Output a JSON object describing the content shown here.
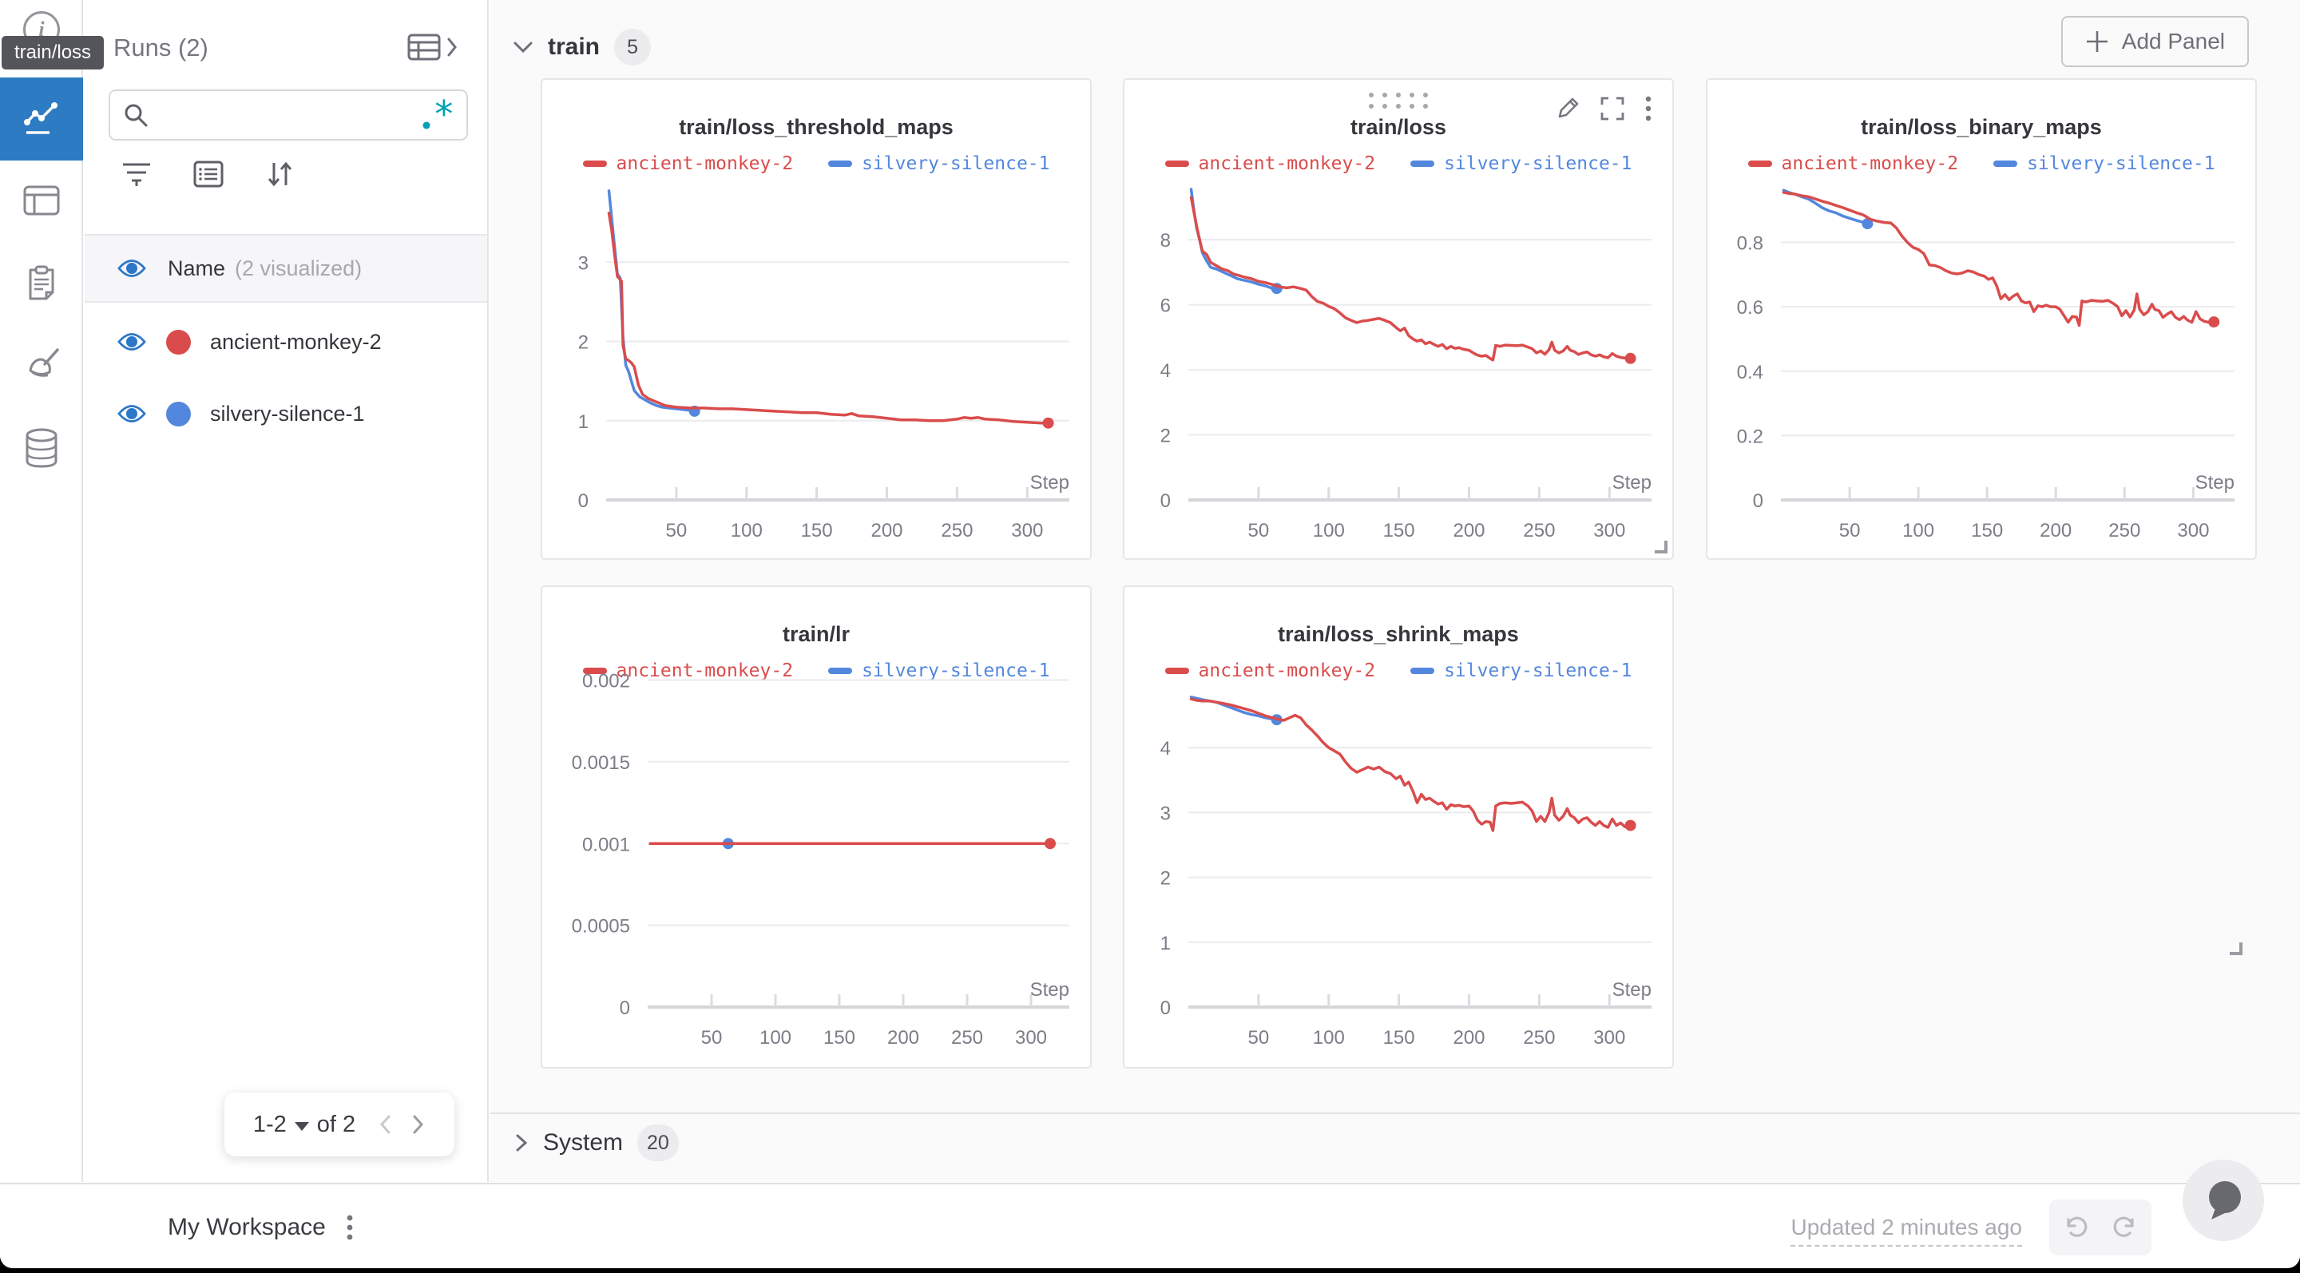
{
  "tooltip": {
    "label": "train/loss"
  },
  "rail": {
    "icons": [
      "info-icon",
      "line-chart-icon",
      "table-panel-icon",
      "clipboard-icon",
      "broom-icon",
      "database-icon"
    ]
  },
  "runs_panel": {
    "title": "Runs (2)",
    "search": {
      "value": "",
      "placeholder": "",
      "regex_icon": ".*"
    },
    "list_header": {
      "name_label": "Name",
      "visualized_label": "(2 visualized)"
    },
    "runs": [
      {
        "name": "ancient-monkey-2",
        "color": "#da4c4c"
      },
      {
        "name": "silvery-silence-1",
        "color": "#5387dd"
      }
    ],
    "pagination": {
      "range_label": "1-2",
      "of_label": "of 2"
    }
  },
  "main": {
    "train_section": {
      "label": "train",
      "count": "5"
    },
    "add_panel_label": "Add Panel",
    "system_section": {
      "label": "System",
      "count": "20"
    }
  },
  "footer": {
    "workspace_label": "My Workspace",
    "updated_label": "Updated 2 minutes ago"
  },
  "colors": {
    "accent_blue": "#2d7bc2",
    "eye_blue": "#2d77c9",
    "teal": "#00a1b5",
    "run_red": "#da4c4c",
    "run_blue": "#5387dd"
  },
  "chart_data": [
    {
      "type": "line",
      "title": "train/loss_threshold_maps",
      "xlabel": "Step",
      "x_ticks": [
        50,
        100,
        150,
        200,
        250,
        300
      ],
      "x_max": 330,
      "y_ticks": [
        "0",
        "1",
        "2",
        "3"
      ],
      "y_max": 3.92,
      "plot_left": 80,
      "grid": true,
      "legend_position": "top",
      "series": [
        {
          "name": "ancient-monkey-2",
          "color": "#da4c4c",
          "end_dot": true,
          "x": [
            2,
            4,
            6,
            8,
            10,
            11,
            12,
            14,
            16,
            18,
            20,
            23,
            26,
            30,
            34,
            38,
            42,
            46,
            50,
            60,
            70,
            80,
            90,
            100,
            110,
            120,
            130,
            140,
            150,
            160,
            170,
            175,
            180,
            190,
            200,
            210,
            220,
            230,
            240,
            250,
            255,
            260,
            265,
            270,
            280,
            290,
            300,
            310,
            315
          ],
          "y": [
            3.62,
            3.4,
            3.1,
            2.82,
            2.78,
            2.76,
            1.95,
            1.78,
            1.76,
            1.73,
            1.68,
            1.45,
            1.33,
            1.28,
            1.25,
            1.22,
            1.19,
            1.18,
            1.17,
            1.16,
            1.16,
            1.15,
            1.15,
            1.14,
            1.13,
            1.12,
            1.11,
            1.1,
            1.1,
            1.08,
            1.07,
            1.09,
            1.06,
            1.05,
            1.03,
            1.01,
            1.01,
            1.0,
            1.0,
            1.02,
            1.04,
            1.03,
            1.04,
            1.02,
            1.01,
            0.99,
            0.98,
            0.97,
            0.97
          ]
        },
        {
          "name": "silvery-silence-1",
          "color": "#5387dd",
          "end_dot": true,
          "x": [
            2,
            4,
            6,
            8,
            10,
            12,
            14,
            16,
            18,
            20,
            24,
            28,
            32,
            36,
            40,
            45,
            50,
            55,
            60,
            63
          ],
          "y": [
            3.9,
            3.55,
            3.2,
            2.85,
            2.8,
            2.05,
            1.7,
            1.62,
            1.5,
            1.38,
            1.3,
            1.26,
            1.22,
            1.19,
            1.17,
            1.16,
            1.15,
            1.14,
            1.13,
            1.12
          ]
        }
      ]
    },
    {
      "type": "line",
      "title": "train/loss",
      "xlabel": "Step",
      "x_ticks": [
        50,
        100,
        150,
        200,
        250,
        300
      ],
      "x_max": 330,
      "y_ticks": [
        "0",
        "2",
        "4",
        "6",
        "8"
      ],
      "y_max": 9.55,
      "plot_left": 80,
      "grid": true,
      "legend_position": "top",
      "series": [
        {
          "name": "ancient-monkey-2",
          "color": "#da4c4c",
          "end_dot": true,
          "x": [
            2,
            4,
            6,
            8,
            10,
            13,
            16,
            20,
            24,
            28,
            32,
            36,
            40,
            45,
            50,
            55,
            60,
            65,
            70,
            75,
            80,
            84,
            88,
            92,
            96,
            100,
            104,
            108,
            112,
            116,
            120,
            124,
            128,
            132,
            136,
            140,
            144,
            148,
            151,
            154,
            157,
            160,
            163,
            166,
            169,
            172,
            175,
            178,
            181,
            184,
            187,
            190,
            193,
            196,
            200,
            203,
            206,
            209,
            212,
            215,
            217,
            219,
            222,
            226,
            230,
            234,
            238,
            242,
            245,
            248,
            251,
            254,
            257,
            259,
            261,
            264,
            267,
            270,
            272,
            275,
            278,
            281,
            284,
            287,
            290,
            293,
            296,
            299,
            302,
            305,
            308,
            311,
            315
          ],
          "y": [
            9.3,
            8.85,
            8.4,
            8.0,
            7.65,
            7.55,
            7.3,
            7.2,
            7.1,
            7.05,
            6.95,
            6.9,
            6.85,
            6.8,
            6.72,
            6.68,
            6.62,
            6.55,
            6.52,
            6.55,
            6.5,
            6.45,
            6.25,
            6.1,
            6.05,
            5.95,
            5.88,
            5.75,
            5.6,
            5.52,
            5.45,
            5.5,
            5.52,
            5.55,
            5.58,
            5.52,
            5.45,
            5.3,
            5.2,
            5.28,
            5.05,
            4.95,
            4.88,
            4.92,
            4.8,
            4.85,
            4.78,
            4.72,
            4.78,
            4.65,
            4.72,
            4.66,
            4.68,
            4.63,
            4.6,
            4.52,
            4.45,
            4.42,
            4.44,
            4.35,
            4.3,
            4.75,
            4.72,
            4.76,
            4.75,
            4.74,
            4.76,
            4.7,
            4.65,
            4.52,
            4.58,
            4.48,
            4.62,
            4.85,
            4.6,
            4.52,
            4.58,
            4.72,
            4.6,
            4.56,
            4.47,
            4.52,
            4.55,
            4.46,
            4.42,
            4.46,
            4.4,
            4.37,
            4.5,
            4.42,
            4.38,
            4.36,
            4.35
          ]
        },
        {
          "name": "silvery-silence-1",
          "color": "#5387dd",
          "end_dot": true,
          "x": [
            2,
            4,
            6,
            8,
            10,
            13,
            16,
            20,
            25,
            30,
            35,
            40,
            45,
            50,
            55,
            60,
            63
          ],
          "y": [
            9.55,
            8.9,
            8.35,
            8.0,
            7.6,
            7.35,
            7.15,
            7.1,
            7.0,
            6.9,
            6.8,
            6.75,
            6.7,
            6.63,
            6.58,
            6.5,
            6.5
          ]
        }
      ]
    },
    {
      "type": "line",
      "title": "train/loss_binary_maps",
      "xlabel": "Step",
      "x_ticks": [
        50,
        100,
        150,
        200,
        250,
        300
      ],
      "x_max": 330,
      "y_ticks": [
        "0",
        "0.2",
        "0.4",
        "0.6",
        "0.8"
      ],
      "y_max": 0.965,
      "plot_left": 92,
      "grid": true,
      "legend_position": "top",
      "series": [
        {
          "name": "ancient-monkey-2",
          "color": "#da4c4c",
          "end_dot": true,
          "x": [
            2,
            6,
            10,
            15,
            20,
            25,
            30,
            35,
            40,
            45,
            50,
            55,
            60,
            65,
            70,
            75,
            80,
            84,
            88,
            92,
            96,
            100,
            104,
            108,
            112,
            116,
            120,
            124,
            128,
            132,
            136,
            140,
            144,
            148,
            151,
            154,
            157,
            160,
            163,
            166,
            169,
            172,
            175,
            178,
            181,
            184,
            187,
            190,
            193,
            196,
            200,
            203,
            206,
            209,
            212,
            215,
            217,
            219,
            222,
            226,
            230,
            234,
            238,
            242,
            245,
            248,
            251,
            254,
            257,
            259,
            261,
            264,
            267,
            270,
            272,
            275,
            278,
            281,
            284,
            287,
            290,
            293,
            296,
            299,
            302,
            305,
            308,
            311,
            315
          ],
          "y": [
            0.955,
            0.952,
            0.95,
            0.945,
            0.942,
            0.935,
            0.928,
            0.922,
            0.915,
            0.908,
            0.9,
            0.892,
            0.885,
            0.872,
            0.866,
            0.862,
            0.86,
            0.845,
            0.82,
            0.8,
            0.785,
            0.778,
            0.765,
            0.73,
            0.728,
            0.722,
            0.712,
            0.705,
            0.702,
            0.705,
            0.712,
            0.708,
            0.7,
            0.695,
            0.685,
            0.69,
            0.665,
            0.625,
            0.638,
            0.622,
            0.633,
            0.64,
            0.618,
            0.612,
            0.615,
            0.585,
            0.603,
            0.6,
            0.605,
            0.6,
            0.6,
            0.592,
            0.572,
            0.552,
            0.57,
            0.568,
            0.542,
            0.618,
            0.615,
            0.62,
            0.618,
            0.617,
            0.62,
            0.61,
            0.6,
            0.572,
            0.588,
            0.568,
            0.59,
            0.64,
            0.592,
            0.575,
            0.585,
            0.608,
            0.592,
            0.588,
            0.567,
            0.577,
            0.585,
            0.567,
            0.56,
            0.57,
            0.558,
            0.552,
            0.585,
            0.562,
            0.555,
            0.552,
            0.553
          ]
        },
        {
          "name": "silvery-silence-1",
          "color": "#5387dd",
          "end_dot": true,
          "x": [
            2,
            6,
            10,
            15,
            20,
            25,
            30,
            35,
            40,
            45,
            50,
            55,
            60,
            63
          ],
          "y": [
            0.962,
            0.955,
            0.95,
            0.942,
            0.935,
            0.922,
            0.908,
            0.898,
            0.892,
            0.882,
            0.875,
            0.868,
            0.862,
            0.858
          ]
        }
      ]
    },
    {
      "type": "line",
      "title": "train/lr",
      "xlabel": "Step",
      "x_ticks": [
        50,
        100,
        150,
        200,
        250,
        300
      ],
      "x_max": 330,
      "y_ticks": [
        "0",
        "0.0005",
        "0.001",
        "0.0015",
        "0.002"
      ],
      "y_max": 0.0019,
      "plot_left": 132,
      "grid": true,
      "legend_position": "top",
      "series": [
        {
          "name": "ancient-monkey-2",
          "color": "#da4c4c",
          "end_dot": true,
          "x": [
            2,
            315
          ],
          "y": [
            0.001,
            0.001
          ]
        },
        {
          "name": "silvery-silence-1",
          "color": "#5387dd",
          "end_dot": true,
          "x": [
            2,
            63
          ],
          "y": [
            0.001,
            0.001
          ]
        }
      ]
    },
    {
      "type": "line",
      "title": "train/loss_shrink_maps",
      "xlabel": "Step",
      "x_ticks": [
        50,
        100,
        150,
        200,
        250,
        300
      ],
      "x_max": 330,
      "y_ticks": [
        "0",
        "1",
        "2",
        "3",
        "4"
      ],
      "y_max": 4.79,
      "plot_left": 80,
      "grid": true,
      "legend_position": "top",
      "series": [
        {
          "name": "ancient-monkey-2",
          "color": "#da4c4c",
          "end_dot": true,
          "x": [
            2,
            6,
            10,
            15,
            20,
            25,
            30,
            35,
            40,
            45,
            50,
            55,
            60,
            64,
            68,
            72,
            76,
            80,
            84,
            88,
            92,
            96,
            100,
            104,
            108,
            112,
            116,
            120,
            124,
            128,
            132,
            136,
            140,
            144,
            148,
            151,
            154,
            157,
            160,
            163,
            166,
            169,
            172,
            175,
            178,
            181,
            184,
            187,
            190,
            193,
            196,
            200,
            203,
            206,
            209,
            212,
            215,
            217,
            219,
            222,
            226,
            230,
            234,
            238,
            242,
            245,
            248,
            251,
            254,
            257,
            259,
            261,
            264,
            267,
            270,
            272,
            275,
            278,
            281,
            284,
            287,
            290,
            293,
            296,
            299,
            302,
            305,
            308,
            311,
            315
          ],
          "y": [
            4.75,
            4.73,
            4.72,
            4.72,
            4.7,
            4.68,
            4.66,
            4.63,
            4.6,
            4.57,
            4.53,
            4.49,
            4.46,
            4.44,
            4.42,
            4.46,
            4.5,
            4.46,
            4.35,
            4.27,
            4.18,
            4.08,
            4.0,
            3.95,
            3.9,
            3.78,
            3.68,
            3.62,
            3.66,
            3.7,
            3.67,
            3.7,
            3.63,
            3.6,
            3.52,
            3.56,
            3.42,
            3.47,
            3.33,
            3.15,
            3.28,
            3.2,
            3.22,
            3.17,
            3.13,
            3.15,
            3.05,
            3.12,
            3.1,
            3.11,
            3.09,
            3.1,
            3.02,
            2.88,
            2.82,
            2.86,
            2.85,
            2.72,
            3.1,
            3.14,
            3.15,
            3.14,
            3.15,
            3.16,
            3.1,
            3.02,
            2.86,
            2.94,
            2.86,
            3.0,
            3.22,
            2.96,
            2.88,
            2.94,
            3.06,
            2.96,
            2.92,
            2.84,
            2.9,
            2.92,
            2.85,
            2.8,
            2.86,
            2.8,
            2.77,
            2.9,
            2.8,
            2.84,
            2.78,
            2.8
          ]
        },
        {
          "name": "silvery-silence-1",
          "color": "#5387dd",
          "end_dot": true,
          "x": [
            2,
            6,
            10,
            15,
            20,
            25,
            30,
            35,
            40,
            45,
            50,
            55,
            60,
            63
          ],
          "y": [
            4.78,
            4.76,
            4.74,
            4.72,
            4.7,
            4.66,
            4.62,
            4.58,
            4.54,
            4.51,
            4.49,
            4.46,
            4.44,
            4.43
          ]
        }
      ]
    }
  ]
}
